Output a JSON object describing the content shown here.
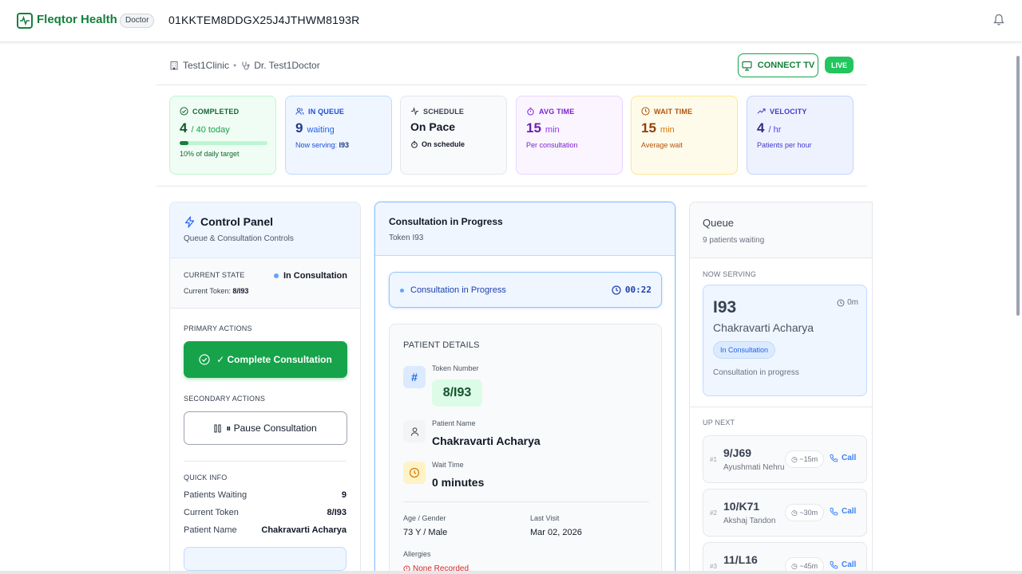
{
  "header": {
    "brand": "Fleqtor Health",
    "role_badge": "Doctor",
    "session_id": "01KKTEM8DDGX25J4JTHWM8193R"
  },
  "context": {
    "clinic": "Test1Clinic",
    "separator": "•",
    "doctor": "Dr. Test1Doctor",
    "connect_tv_label": "CONNECT TV",
    "live_label": "LIVE"
  },
  "stats": {
    "completed": {
      "label": "COMPLETED",
      "value": "4",
      "unit": "/ 40 today",
      "progress": 0.1,
      "sub": "10% of daily target"
    },
    "in_queue": {
      "label": "IN QUEUE",
      "value": "9",
      "unit": "waiting",
      "sub_prefix": "Now serving:",
      "sub_token": "I93"
    },
    "schedule": {
      "label": "SCHEDULE",
      "status": "On Pace",
      "sub": "On schedule"
    },
    "avg_time": {
      "label": "AVG TIME",
      "value": "15",
      "unit": "min",
      "sub": "Per consultation"
    },
    "wait_time": {
      "label": "WAIT TIME",
      "value": "15",
      "unit": "min",
      "sub": "Average wait"
    },
    "velocity": {
      "label": "VELOCITY",
      "value": "4",
      "unit": "/ hr",
      "sub": "Patients per hour"
    }
  },
  "control_panel": {
    "title": "Control Panel",
    "subtitle": "Queue & Consultation Controls",
    "current_state_label": "CURRENT STATE",
    "current_state_value": "In Consultation",
    "current_token_label": "Current Token:",
    "current_token_value": "8/I93",
    "primary_actions_label": "PRIMARY ACTIONS",
    "complete_label": "✓ Complete Consultation",
    "secondary_actions_label": "SECONDARY ACTIONS",
    "pause_label": "⏸ Pause Consultation",
    "quick_info_label": "QUICK INFO",
    "quick_info": [
      {
        "k": "Patients Waiting",
        "v": "9"
      },
      {
        "k": "Current Token",
        "v": "8/I93"
      },
      {
        "k": "Patient Name",
        "v": "Chakravarti Acharya"
      }
    ]
  },
  "consultation": {
    "title": "Consultation in Progress",
    "token": "Token I93",
    "progress_text": "Consultation in Progress",
    "timer": "00:22",
    "details_label": "PATIENT DETAILS",
    "token_number_label": "Token Number",
    "token_number_value": "8/I93",
    "patient_name_label": "Patient Name",
    "patient_name_value": "Chakravarti Acharya",
    "wait_time_label": "Wait Time",
    "wait_time_value": "0 minutes",
    "age_gender_label": "Age / Gender",
    "age_gender_value": "73 Y / Male",
    "last_visit_label": "Last Visit",
    "last_visit_value": "Mar 02, 2026",
    "allergies_label": "Allergies",
    "allergies_value": "None Recorded"
  },
  "queue": {
    "title": "Queue",
    "subtitle": "9 patients waiting",
    "now_serving_label": "NOW SERVING",
    "now_serving": {
      "token": "I93",
      "time": "0m",
      "name": "Chakravarti Acharya",
      "badge": "In Consultation",
      "status": "Consultation in progress"
    },
    "up_next_label": "UP NEXT",
    "call_label": "Call",
    "items": [
      {
        "num": "#1",
        "token": "9/J69",
        "name": "Ayushmati Nehru",
        "wait": "~15m"
      },
      {
        "num": "#2",
        "token": "10/K71",
        "name": "Akshaj Tandon",
        "wait": "~30m"
      },
      {
        "num": "#3",
        "token": "11/L16",
        "name": "",
        "wait": "~45m"
      }
    ]
  },
  "colors": {
    "brand": "#15803d",
    "accent_blue": "#3b82f6",
    "success": "#16a34a"
  }
}
